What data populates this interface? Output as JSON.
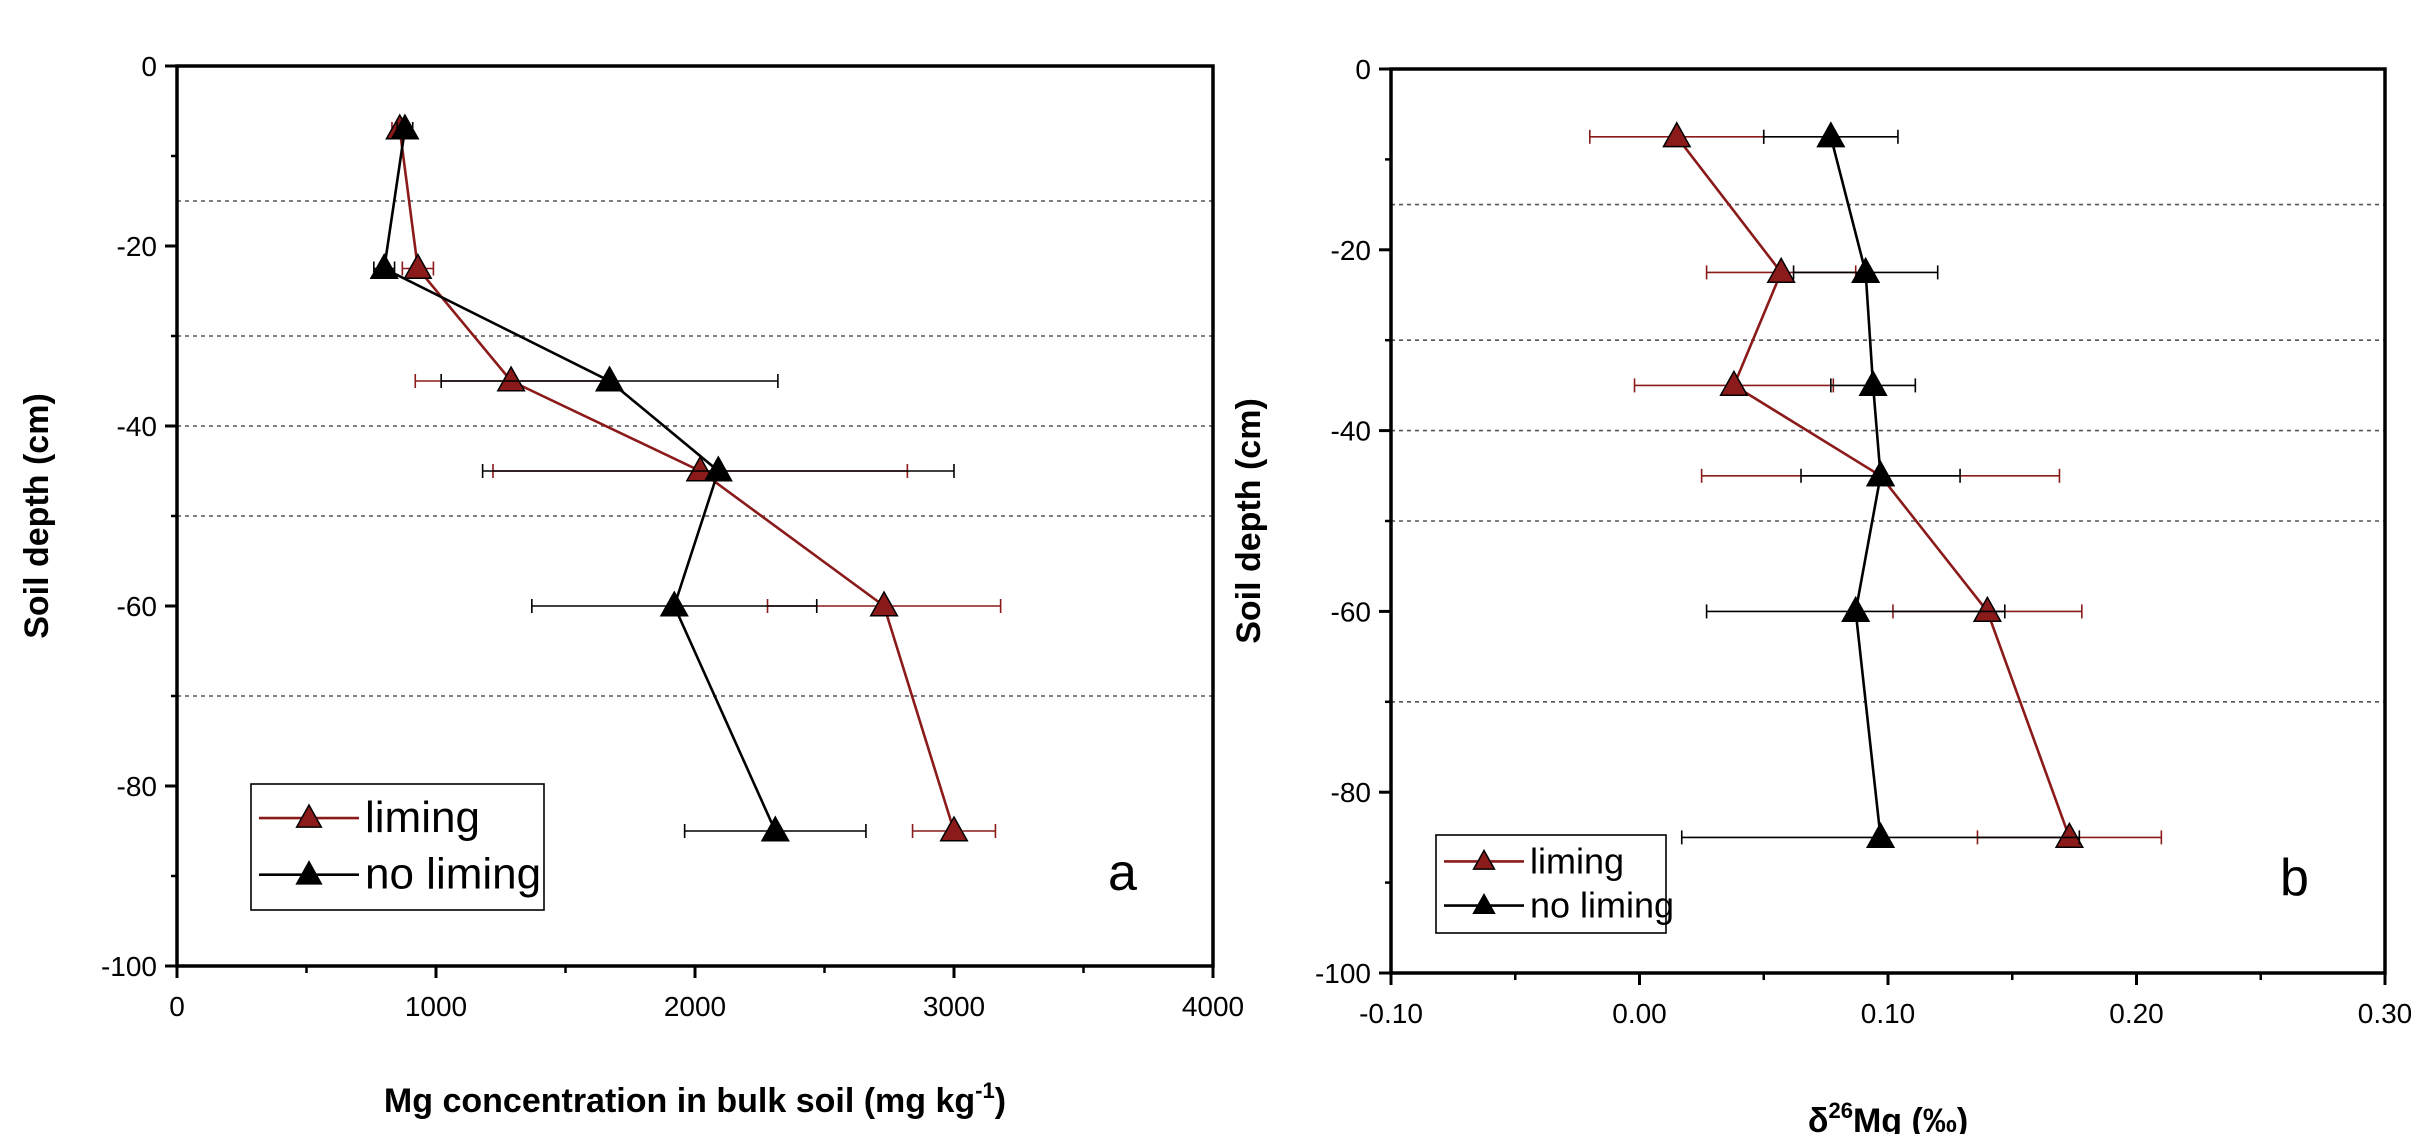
{
  "colors": {
    "liming": "#8b1a1a",
    "no_liming": "#000000",
    "grid": "#555555"
  },
  "chart_data": [
    {
      "type": "line",
      "panel_label": "a",
      "xlabel": "Mg concentration in bulk soil (mg kg",
      "xlabel_sup": "-1",
      "xlabel_end": ")",
      "ylabel": "Soil depth (cm)",
      "xlim": [
        0,
        4000
      ],
      "ylim": [
        -100,
        0
      ],
      "xticks": [
        0,
        1000,
        2000,
        3000,
        4000
      ],
      "xtick_labels": [
        "0",
        "1000",
        "2000",
        "3000",
        "4000"
      ],
      "yticks": [
        0,
        -20,
        -40,
        -60,
        -80,
        -100
      ],
      "ytick_labels": [
        "0",
        "-20",
        "-40",
        "-60",
        "-80",
        "-100"
      ],
      "grid_lines_y": [
        -15,
        -30,
        -40,
        -50,
        -70
      ],
      "legend": {
        "location": "bottom-left",
        "entries": [
          "liming",
          "no liming"
        ]
      },
      "series": [
        {
          "name": "liming",
          "x": [
            860,
            930,
            1290,
            2020,
            2730,
            3000
          ],
          "y": [
            -7,
            -22.5,
            -35,
            -45,
            -60,
            -85
          ],
          "xerr": [
            30,
            60,
            370,
            800,
            450,
            160
          ]
        },
        {
          "name": "no liming",
          "x": [
            880,
            800,
            1670,
            2090,
            1920,
            2310
          ],
          "y": [
            -7,
            -22.5,
            -35,
            -45,
            -60,
            -85
          ],
          "xerr": [
            30,
            40,
            650,
            910,
            550,
            350
          ]
        }
      ]
    },
    {
      "type": "line",
      "panel_label": "b",
      "xlabel": "δ",
      "xlabel_sup": "26",
      "xlabel_end": "Mg           (‰)",
      "ylabel": "Soil depth (cm)",
      "xlim": [
        -0.1,
        0.3
      ],
      "ylim": [
        -100,
        0
      ],
      "xticks": [
        -0.1,
        0,
        0.1,
        0.2,
        0.3
      ],
      "xtick_labels": [
        "-0.10",
        "0.00",
        "0.10",
        "0.20",
        "0.30"
      ],
      "yticks": [
        0,
        -20,
        -40,
        -60,
        -80,
        -100
      ],
      "ytick_labels": [
        "0",
        "-20",
        "-40",
        "-60",
        "-80",
        "-100"
      ],
      "grid_lines_y": [
        -15,
        -30,
        -40,
        -50,
        -70
      ],
      "legend": {
        "location": "bottom-left",
        "entries": [
          "liming",
          "no liming"
        ]
      },
      "series": [
        {
          "name": "liming",
          "x": [
            0.015,
            0.057,
            0.038,
            0.097,
            0.14,
            0.173
          ],
          "y": [
            -7.5,
            -22.5,
            -35,
            -45,
            -60,
            -85
          ],
          "xerr": [
            0.035,
            0.03,
            0.04,
            0.072,
            0.038,
            0.037
          ]
        },
        {
          "name": "no liming",
          "x": [
            0.077,
            0.091,
            0.094,
            0.097,
            0.087,
            0.097
          ],
          "y": [
            -7.5,
            -22.5,
            -35,
            -45,
            -60,
            -85
          ],
          "xerr": [
            0.027,
            0.029,
            0.017,
            0.032,
            0.06,
            0.08
          ]
        }
      ]
    }
  ]
}
